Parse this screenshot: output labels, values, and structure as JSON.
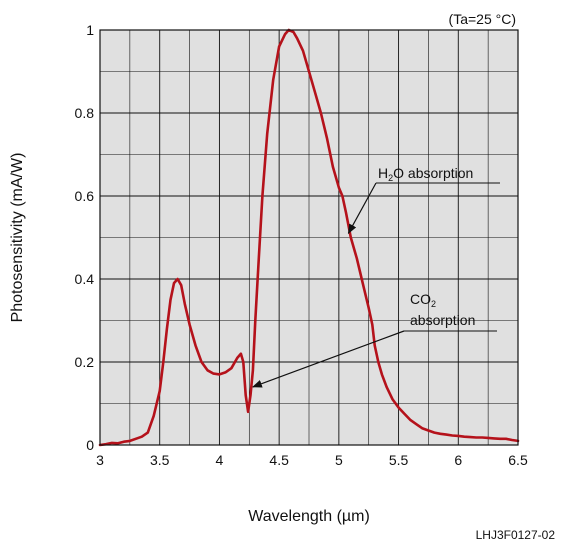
{
  "chart_data": {
    "type": "line",
    "title": "",
    "condition_note": "(Ta=25 °C)",
    "xlabel": "Wavelength (µm)",
    "ylabel": "Photosensitivity (mA/W)",
    "xlim": [
      3,
      6.5
    ],
    "ylim": [
      0,
      1
    ],
    "xticks": [
      3,
      3.5,
      4,
      4.5,
      5,
      5.5,
      6,
      6.5
    ],
    "xtick_labels": [
      "3",
      "3.5",
      "4",
      "4.5",
      "5",
      "5.5",
      "6",
      "6.5"
    ],
    "yticks": [
      0,
      0.2,
      0.4,
      0.6,
      0.8,
      1
    ],
    "ytick_labels": [
      "0",
      "0.2",
      "0.4",
      "0.6",
      "0.8",
      "1"
    ],
    "xgrid_minor": [
      3.25,
      3.75,
      4.25,
      4.75,
      5.25,
      5.75,
      6.25
    ],
    "ygrid_minor": [
      0.1,
      0.3,
      0.5,
      0.7,
      0.9
    ],
    "grid": true,
    "background_color": "#e0e0e0",
    "line_color": "#b5121b",
    "series": [
      {
        "x": [
          3.0,
          3.05,
          3.1,
          3.15,
          3.2,
          3.25,
          3.3,
          3.35,
          3.4,
          3.45,
          3.5,
          3.53,
          3.56,
          3.59,
          3.62,
          3.65,
          3.68,
          3.71,
          3.75,
          3.8,
          3.85,
          3.9,
          3.95,
          4.0,
          4.05,
          4.1,
          4.15,
          4.18,
          4.2,
          4.22,
          4.24,
          4.26,
          4.28,
          4.3,
          4.33,
          4.36,
          4.4,
          4.45,
          4.5,
          4.55,
          4.58,
          4.62,
          4.65,
          4.7,
          4.75,
          4.8,
          4.85,
          4.9,
          4.95,
          5.0,
          5.03,
          5.06,
          5.1,
          5.15,
          5.2,
          5.25,
          5.28,
          5.3,
          5.33,
          5.36,
          5.4,
          5.45,
          5.5,
          5.55,
          5.6,
          5.65,
          5.7,
          5.75,
          5.8,
          5.85,
          5.9,
          5.95,
          6.0,
          6.05,
          6.1,
          6.15,
          6.2,
          6.25,
          6.3,
          6.35,
          6.4,
          6.45,
          6.5
        ],
        "y": [
          0.0,
          0.002,
          0.005,
          0.004,
          0.008,
          0.01,
          0.015,
          0.02,
          0.03,
          0.07,
          0.13,
          0.2,
          0.28,
          0.35,
          0.39,
          0.4,
          0.385,
          0.34,
          0.29,
          0.24,
          0.2,
          0.18,
          0.172,
          0.17,
          0.175,
          0.185,
          0.21,
          0.22,
          0.2,
          0.12,
          0.08,
          0.12,
          0.18,
          0.3,
          0.45,
          0.6,
          0.75,
          0.88,
          0.96,
          0.99,
          1.0,
          0.995,
          0.98,
          0.95,
          0.9,
          0.85,
          0.8,
          0.74,
          0.67,
          0.62,
          0.6,
          0.56,
          0.5,
          0.45,
          0.39,
          0.33,
          0.29,
          0.24,
          0.2,
          0.17,
          0.14,
          0.11,
          0.09,
          0.075,
          0.06,
          0.05,
          0.04,
          0.035,
          0.03,
          0.027,
          0.025,
          0.023,
          0.022,
          0.02,
          0.019,
          0.018,
          0.018,
          0.017,
          0.016,
          0.015,
          0.015,
          0.012,
          0.01
        ]
      }
    ],
    "annotations": [
      {
        "text_main": "H",
        "text_sub": "2",
        "text_rest": "O absorption",
        "target": [
          5.08,
          0.51
        ]
      },
      {
        "text_main": "CO",
        "text_sub": "2",
        "text_line2": "absorption",
        "target": [
          4.28,
          0.14
        ]
      }
    ]
  },
  "figure_code": "LHJ3F0127-02"
}
